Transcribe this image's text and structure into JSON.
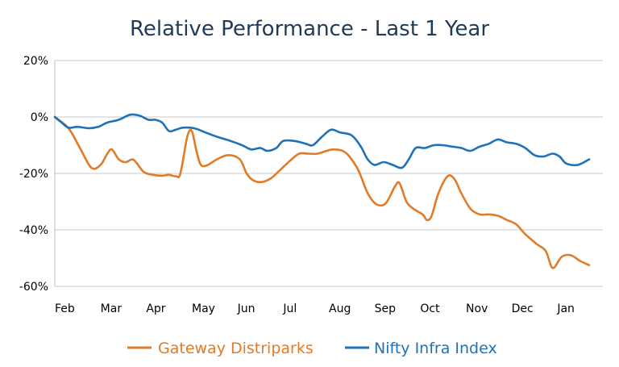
{
  "chart_data": {
    "type": "line",
    "title": "Relative Performance - Last 1 Year",
    "xlabel": "",
    "ylabel": "",
    "x_ticks": [
      "Feb",
      "Mar",
      "Apr",
      "May",
      "Jun",
      "Jul",
      "Aug",
      "Sep",
      "Oct",
      "Nov",
      "Dec",
      "Jan"
    ],
    "y_ticks": [
      "20%",
      "0%",
      "-20%",
      "-40%",
      "-60%"
    ],
    "ylim": [
      -60,
      20
    ],
    "xlim": [
      0,
      12
    ],
    "grid": true,
    "legend_position": "bottom",
    "series": [
      {
        "name": "Gateway Distriparks",
        "color": "#e07b27",
        "points": [
          [
            0.0,
            0
          ],
          [
            0.3,
            -4
          ],
          [
            0.55,
            -11
          ],
          [
            0.8,
            -18
          ],
          [
            1.0,
            -17
          ],
          [
            1.15,
            -13
          ],
          [
            1.25,
            -11.5
          ],
          [
            1.4,
            -15
          ],
          [
            1.55,
            -16
          ],
          [
            1.7,
            -15
          ],
          [
            1.8,
            -16.5
          ],
          [
            1.95,
            -19.5
          ],
          [
            2.15,
            -20.5
          ],
          [
            2.35,
            -20.8
          ],
          [
            2.5,
            -20.5
          ],
          [
            2.65,
            -21
          ],
          [
            2.75,
            -20
          ],
          [
            2.9,
            -7
          ],
          [
            3.0,
            -5
          ],
          [
            3.1,
            -12
          ],
          [
            3.2,
            -17
          ],
          [
            3.35,
            -17
          ],
          [
            3.55,
            -15
          ],
          [
            3.8,
            -13.5
          ],
          [
            4.05,
            -15
          ],
          [
            4.2,
            -20
          ],
          [
            4.35,
            -22.5
          ],
          [
            4.55,
            -23
          ],
          [
            4.75,
            -21.5
          ],
          [
            4.95,
            -18.5
          ],
          [
            5.15,
            -15.5
          ],
          [
            5.35,
            -13
          ],
          [
            5.55,
            -13
          ],
          [
            5.75,
            -13
          ],
          [
            5.95,
            -12
          ],
          [
            6.1,
            -11.5
          ],
          [
            6.3,
            -12
          ],
          [
            6.45,
            -14
          ],
          [
            6.65,
            -19
          ],
          [
            6.85,
            -27
          ],
          [
            7.05,
            -31
          ],
          [
            7.25,
            -30.5
          ],
          [
            7.45,
            -24.5
          ],
          [
            7.55,
            -23.5
          ],
          [
            7.7,
            -30
          ],
          [
            7.85,
            -32.5
          ],
          [
            8.05,
            -34.5
          ],
          [
            8.15,
            -36.5
          ],
          [
            8.25,
            -35
          ],
          [
            8.4,
            -27
          ],
          [
            8.6,
            -21
          ],
          [
            8.75,
            -22
          ],
          [
            8.9,
            -27
          ],
          [
            9.1,
            -32.5
          ],
          [
            9.3,
            -34.5
          ],
          [
            9.5,
            -34.5
          ],
          [
            9.7,
            -35
          ],
          [
            9.9,
            -36.5
          ],
          [
            10.1,
            -38
          ],
          [
            10.3,
            -41.5
          ],
          [
            10.55,
            -45
          ],
          [
            10.75,
            -47.5
          ],
          [
            10.9,
            -53.5
          ],
          [
            11.1,
            -49.5
          ],
          [
            11.3,
            -49
          ],
          [
            11.5,
            -51
          ],
          [
            11.7,
            -52.5
          ]
        ]
      },
      {
        "name": "Nifty Infra Index",
        "color": "#1f72b5",
        "points": [
          [
            0.0,
            0
          ],
          [
            0.15,
            -2
          ],
          [
            0.3,
            -3.8
          ],
          [
            0.5,
            -3.5
          ],
          [
            0.75,
            -4
          ],
          [
            0.95,
            -3.5
          ],
          [
            1.15,
            -2
          ],
          [
            1.4,
            -1
          ],
          [
            1.65,
            0.8
          ],
          [
            1.85,
            0.5
          ],
          [
            2.05,
            -1
          ],
          [
            2.2,
            -1
          ],
          [
            2.35,
            -2
          ],
          [
            2.5,
            -5
          ],
          [
            2.65,
            -4.5
          ],
          [
            2.8,
            -3.8
          ],
          [
            3.05,
            -4
          ],
          [
            3.3,
            -5.5
          ],
          [
            3.55,
            -7
          ],
          [
            3.85,
            -8.5
          ],
          [
            4.1,
            -10
          ],
          [
            4.3,
            -11.5
          ],
          [
            4.5,
            -11
          ],
          [
            4.65,
            -12
          ],
          [
            4.85,
            -11
          ],
          [
            5.0,
            -8.5
          ],
          [
            5.25,
            -8.5
          ],
          [
            5.5,
            -9.5
          ],
          [
            5.65,
            -10
          ],
          [
            5.85,
            -7
          ],
          [
            6.05,
            -4.5
          ],
          [
            6.25,
            -5.5
          ],
          [
            6.5,
            -6.5
          ],
          [
            6.7,
            -10.5
          ],
          [
            6.85,
            -15
          ],
          [
            7.0,
            -17
          ],
          [
            7.2,
            -16
          ],
          [
            7.4,
            -17
          ],
          [
            7.6,
            -18
          ],
          [
            7.75,
            -15
          ],
          [
            7.9,
            -11
          ],
          [
            8.1,
            -11
          ],
          [
            8.3,
            -10
          ],
          [
            8.5,
            -10
          ],
          [
            8.7,
            -10.5
          ],
          [
            8.9,
            -11
          ],
          [
            9.1,
            -12
          ],
          [
            9.3,
            -10.5
          ],
          [
            9.5,
            -9.5
          ],
          [
            9.7,
            -8
          ],
          [
            9.9,
            -9
          ],
          [
            10.1,
            -9.5
          ],
          [
            10.3,
            -11
          ],
          [
            10.5,
            -13.5
          ],
          [
            10.7,
            -14
          ],
          [
            10.9,
            -13
          ],
          [
            11.05,
            -14
          ],
          [
            11.2,
            -16.5
          ],
          [
            11.45,
            -17
          ],
          [
            11.7,
            -15
          ]
        ]
      }
    ]
  }
}
